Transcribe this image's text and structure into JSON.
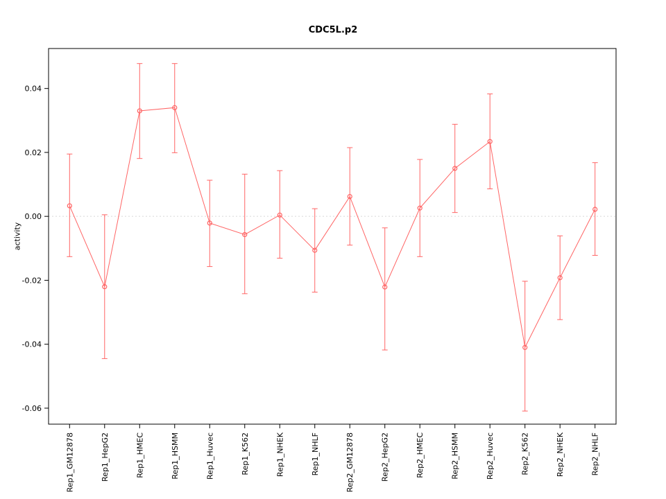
{
  "chart_data": {
    "type": "line",
    "title": "CDC5L.p2",
    "ylabel": "activity",
    "xlabel": "",
    "marker": "open-circle",
    "line_color": "#ff6464",
    "zero_line_color": "#d8d8d8",
    "axis_color": "#000000",
    "grid": "zero-line-only-dotted",
    "legend": "none",
    "categories": [
      "Rep1_GM12878",
      "Rep1_HepG2",
      "Rep1_HMEC",
      "Rep1_HSMM",
      "Rep1_Huvec",
      "Rep1_K562",
      "Rep1_NHEK",
      "Rep1_NHLF",
      "Rep2_GM12878",
      "Rep2_HepG2",
      "Rep2_HMEC",
      "Rep2_HSMM",
      "Rep2_Huvec",
      "Rep2_K562",
      "Rep2_NHEK",
      "Rep2_NHLF"
    ],
    "values": [
      0.0033,
      -0.022,
      0.033,
      0.034,
      -0.0021,
      -0.0057,
      0.0004,
      -0.0106,
      0.0062,
      -0.0221,
      0.0026,
      0.015,
      0.0234,
      -0.041,
      -0.0192,
      0.0022
    ],
    "error_upper": [
      0.0195,
      0.0005,
      0.0478,
      0.0478,
      0.0113,
      0.0132,
      0.0143,
      0.0024,
      0.0215,
      -0.0036,
      0.0178,
      0.0288,
      0.0383,
      -0.0203,
      -0.0061,
      0.0168
    ],
    "error_lower": [
      -0.0126,
      -0.0445,
      0.0181,
      0.0199,
      -0.0157,
      -0.0242,
      -0.0131,
      -0.0237,
      -0.009,
      -0.0418,
      -0.0126,
      0.0012,
      0.0086,
      -0.0609,
      -0.0323,
      -0.0122
    ],
    "yticks": [
      -0.06,
      -0.04,
      -0.02,
      0.0,
      0.02,
      0.04
    ],
    "ylim": [
      -0.065,
      0.0525
    ],
    "xlim": [
      0.4,
      16.6
    ]
  }
}
